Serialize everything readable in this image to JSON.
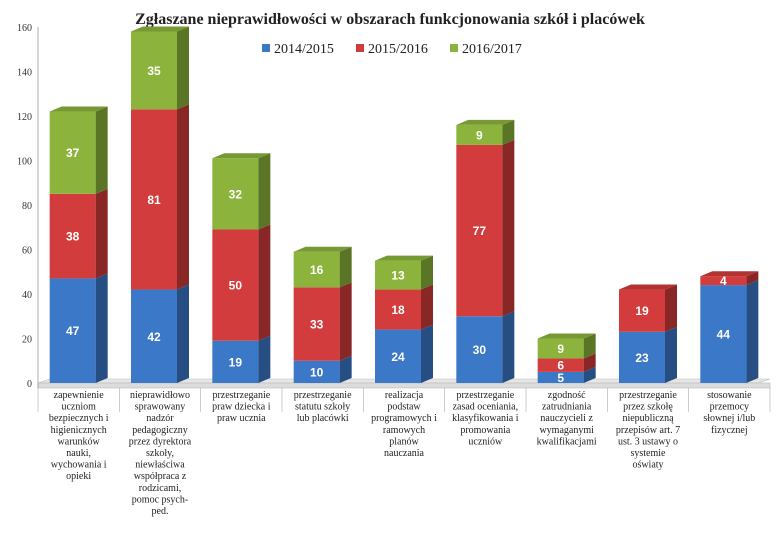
{
  "chart_data": {
    "type": "bar",
    "stacked": true,
    "title": "Zgłaszane nieprawidłowości w obszarach funkcjonowania szkół i placówek",
    "ylim": [
      0,
      160
    ],
    "yticks": [
      0,
      20,
      40,
      60,
      80,
      100,
      120,
      140,
      160
    ],
    "legend_position": "top-right",
    "categories": [
      [
        "zapewnienie",
        "uczniom",
        "bezpiecznych i",
        "higienicznych",
        "warunków",
        "nauki,",
        "wychowania i",
        "opieki"
      ],
      [
        "nieprawidłowo",
        "sprawowany",
        "nadzór",
        "pedagogiczny",
        "przez dyrektora",
        "szkoły,",
        "niewłaściwa",
        "współpraca z",
        "rodzicami,",
        "pomoc psych-",
        "ped."
      ],
      [
        "przestrzeganie",
        "praw dziecka i",
        "praw ucznia"
      ],
      [
        "przestrzeganie",
        "statutu szkoły",
        "lub placówki"
      ],
      [
        "realizacja",
        "podstaw",
        "programowych i",
        "ramowych",
        "planów",
        "nauczania"
      ],
      [
        "przestrzeganie",
        "zasad oceniania,",
        "klasyfikowania i",
        "promowania",
        "uczniów"
      ],
      [
        "zgodność",
        "zatrudniania",
        "nauczycieli z",
        "wymaganymi",
        "kwalifikacjami"
      ],
      [
        "przestrzeganie",
        "przez szkołę",
        "niepubliczną",
        "przepisów art. 7",
        "ust. 3 ustawy o",
        "systemie",
        "oświaty"
      ],
      [
        "stosowanie",
        "przemocy",
        "słownej i/lub",
        "fizycznej"
      ]
    ],
    "series": [
      {
        "name": "2014/2015",
        "color": "#3c78c8",
        "values": [
          47,
          42,
          19,
          10,
          24,
          30,
          5,
          23,
          44
        ]
      },
      {
        "name": "2015/2016",
        "color": "#d23c3c",
        "values": [
          38,
          81,
          50,
          33,
          18,
          77,
          6,
          19,
          4
        ]
      },
      {
        "name": "2016/2017",
        "color": "#8cb43c",
        "values": [
          37,
          35,
          32,
          16,
          13,
          9,
          9,
          0,
          0
        ]
      }
    ]
  }
}
